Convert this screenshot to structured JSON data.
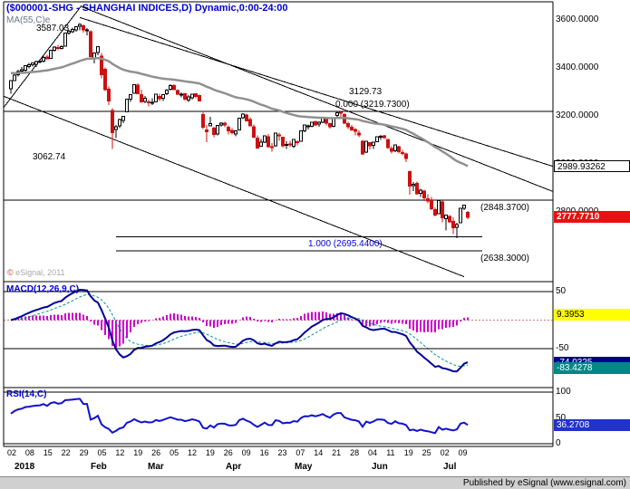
{
  "window": {
    "title": "($000001-SHG - SHANGHAI INDICES,D) Dynamic,0:00-24:00",
    "footer": "Published by eSignal (www.esignal.com)",
    "watermark": "eSignal, 2011"
  },
  "price_panel": {
    "ma_label": "MA(55,C)e",
    "axis_labels": [
      "3600.0000",
      "3400.0000",
      "3200.0000",
      "3000.0000",
      "2800.0000"
    ],
    "trendline_box": {
      "text": "2989.93262",
      "value": 2989.93262
    },
    "price_box": {
      "text": "2777.7710",
      "value": 2777.771,
      "bg": "#e81010"
    },
    "annotations": {
      "peak": "3587.03",
      "level_3129": "3129.73",
      "fib_zero": "0.000 (3219.7300)",
      "feb_low": "3062.74",
      "level_2848": "(2848.3700)",
      "fib_one": "1.000 (2695.4400)",
      "level_2638": "(2638.3000)"
    }
  },
  "macd_panel": {
    "label": "MACD(12,26,9,C)",
    "axis_labels": [
      "50",
      "-50"
    ],
    "hist_box": {
      "text": "9.3953",
      "value": 9.3953,
      "bg": "#ffff00"
    },
    "macd_box": {
      "text": "-74.0325",
      "value": -74.0325,
      "bg": "#000088"
    },
    "signal_box": {
      "text": "-83.4278",
      "value": -83.4278,
      "bg": "#008888"
    }
  },
  "rsi_panel": {
    "label": "RSI(14,C)",
    "axis_labels": [
      "100",
      "50",
      "0"
    ],
    "value_box": {
      "text": "36.2708",
      "value": 36.2708,
      "bg": "#2233cc"
    }
  },
  "x_axis": {
    "day_labels": [
      "02",
      "08",
      "15",
      "22",
      "29",
      "05",
      "12",
      "19",
      "26",
      "05",
      "12",
      "19",
      "26",
      "09",
      "16",
      "23",
      "07",
      "14",
      "21",
      "28",
      "04",
      "11",
      "19",
      "25",
      "02",
      "09"
    ],
    "month_labels": [
      "2018",
      "Feb",
      "Mar",
      "Apr",
      "May",
      "Jun",
      "Jul"
    ]
  },
  "chart_data": {
    "type": "candlestick",
    "title": "($000001-SHG - SHANGHAI INDICES,D) Dynamic,0:00-24:00",
    "symbol": "$000001-SHG",
    "interval": "D",
    "ylim": [
      2513,
      3660
    ],
    "macd_ylim": [
      -117,
      66
    ],
    "rsi_ylim": [
      -5,
      109
    ],
    "overlays": {
      "ema_period": 55,
      "ema_seed": 3380
    },
    "studies": {
      "macd": [
        12,
        26,
        9
      ],
      "rsi": 14
    },
    "levels": [
      {
        "price": 3219.73,
        "span": "full"
      },
      {
        "price": 2848.37,
        "span": "full"
      },
      {
        "price": 2695.44,
        "span": "fib"
      },
      {
        "price": 2638.3,
        "span": "fib"
      }
    ],
    "trendlines": [
      {
        "i1": -2,
        "p1": 3235,
        "i2": 19.5,
        "p2": 3660
      },
      {
        "i1": 19,
        "p1": 3610,
        "i2": 149.5,
        "p2": 2989.93
      },
      {
        "i1": 19.5,
        "p1": 3655,
        "i2": 149.5,
        "p2": 2885
      },
      {
        "i1": -2,
        "p1": 3282,
        "i2": 125,
        "p2": 2530
      }
    ],
    "candles": [
      [
        3314,
        3349,
        3292,
        3348
      ],
      [
        3347,
        3379,
        3345,
        3369
      ],
      [
        3371,
        3392,
        3365,
        3385
      ],
      [
        3386,
        3403,
        3380,
        3392
      ],
      [
        3391,
        3412,
        3384,
        3410
      ],
      [
        3406,
        3420,
        3398,
        3414
      ],
      [
        3414,
        3423,
        3405,
        3421
      ],
      [
        3415,
        3430,
        3403,
        3426
      ],
      [
        3425,
        3435,
        3418,
        3429
      ],
      [
        3428,
        3449,
        3423,
        3444
      ],
      [
        3446,
        3455,
        3436,
        3437
      ],
      [
        3440,
        3476,
        3438,
        3474
      ],
      [
        3473,
        3490,
        3467,
        3487
      ],
      [
        3485,
        3496,
        3474,
        3481
      ],
      [
        3482,
        3494,
        3477,
        3488
      ],
      [
        3490,
        3548,
        3489,
        3546
      ],
      [
        3545,
        3559,
        3538,
        3552
      ],
      [
        3551,
        3568,
        3545,
        3560
      ],
      [
        3559,
        3574,
        3551,
        3571
      ],
      [
        3573,
        3587,
        3556,
        3581
      ],
      [
        3575,
        3581,
        3548,
        3558
      ],
      [
        3555,
        3566,
        3535,
        3559
      ],
      [
        3551,
        3556,
        3438,
        3447
      ],
      [
        3442,
        3463,
        3418,
        3462
      ],
      [
        3464,
        3488,
        3452,
        3488
      ],
      [
        3450,
        3462,
        3357,
        3371
      ],
      [
        3394,
        3402,
        3304,
        3309
      ],
      [
        3312,
        3322,
        3245,
        3262
      ],
      [
        3222,
        3232,
        3063,
        3130
      ],
      [
        3144,
        3163,
        3108,
        3154
      ],
      [
        3158,
        3188,
        3149,
        3185
      ],
      [
        3181,
        3200,
        3170,
        3199
      ],
      [
        3217,
        3269,
        3216,
        3269
      ],
      [
        3269,
        3290,
        3259,
        3289
      ],
      [
        3294,
        3332,
        3292,
        3330
      ],
      [
        3329,
        3336,
        3290,
        3292
      ],
      [
        3288,
        3309,
        3255,
        3259
      ],
      [
        3260,
        3283,
        3253,
        3274
      ],
      [
        3258,
        3268,
        3239,
        3255
      ],
      [
        3254,
        3273,
        3245,
        3257
      ],
      [
        3259,
        3291,
        3258,
        3290
      ],
      [
        3282,
        3292,
        3263,
        3272
      ],
      [
        3274,
        3289,
        3263,
        3288
      ],
      [
        3292,
        3312,
        3287,
        3307
      ],
      [
        3311,
        3332,
        3306,
        3327
      ],
      [
        3327,
        3333,
        3307,
        3310
      ],
      [
        3305,
        3312,
        3287,
        3291
      ],
      [
        3288,
        3299,
        3277,
        3291
      ],
      [
        3292,
        3296,
        3264,
        3270
      ],
      [
        3267,
        3287,
        3258,
        3279
      ],
      [
        3275,
        3292,
        3268,
        3291
      ],
      [
        3292,
        3295,
        3274,
        3281
      ],
      [
        3285,
        3288,
        3260,
        3263
      ],
      [
        3206,
        3216,
        3145,
        3153
      ],
      [
        3141,
        3163,
        3091,
        3134
      ],
      [
        3158,
        3197,
        3156,
        3167
      ],
      [
        3150,
        3155,
        3112,
        3122
      ],
      [
        3124,
        3162,
        3118,
        3161
      ],
      [
        3163,
        3174,
        3154,
        3169
      ],
      [
        3169,
        3176,
        3153,
        3163
      ],
      [
        3152,
        3161,
        3123,
        3137
      ],
      [
        3139,
        3149,
        3123,
        3131
      ],
      [
        3125,
        3142,
        3115,
        3138
      ],
      [
        3142,
        3191,
        3141,
        3190
      ],
      [
        3192,
        3211,
        3186,
        3208
      ],
      [
        3204,
        3210,
        3177,
        3180
      ],
      [
        3184,
        3194,
        3157,
        3159
      ],
      [
        3155,
        3164,
        3108,
        3111
      ],
      [
        3108,
        3119,
        3063,
        3067
      ],
      [
        3074,
        3104,
        3071,
        3091
      ],
      [
        3091,
        3119,
        3087,
        3117
      ],
      [
        3114,
        3124,
        3068,
        3072
      ],
      [
        3072,
        3086,
        3051,
        3068
      ],
      [
        3076,
        3131,
        3071,
        3129
      ],
      [
        3121,
        3131,
        3097,
        3118
      ],
      [
        3111,
        3112,
        3068,
        3075
      ],
      [
        3080,
        3094,
        3062,
        3082
      ],
      [
        3083,
        3096,
        3070,
        3081
      ],
      [
        3073,
        3103,
        3066,
        3101
      ],
      [
        3093,
        3099,
        3077,
        3091
      ],
      [
        3095,
        3137,
        3093,
        3137
      ],
      [
        3137,
        3163,
        3133,
        3162
      ],
      [
        3158,
        3164,
        3144,
        3159
      ],
      [
        3157,
        3176,
        3153,
        3174
      ],
      [
        3175,
        3181,
        3158,
        3163
      ],
      [
        3166,
        3178,
        3154,
        3174
      ],
      [
        3174,
        3193,
        3170,
        3192
      ],
      [
        3185,
        3190,
        3160,
        3170
      ],
      [
        3167,
        3172,
        3148,
        3154
      ],
      [
        3156,
        3194,
        3152,
        3193
      ],
      [
        3202,
        3219,
        3196,
        3214
      ],
      [
        3216,
        3220,
        3197,
        3214
      ],
      [
        3206,
        3211,
        3166,
        3169
      ],
      [
        3168,
        3175,
        3146,
        3155
      ],
      [
        3152,
        3162,
        3137,
        3141
      ],
      [
        3143,
        3150,
        3118,
        3135
      ],
      [
        3128,
        3139,
        3112,
        3120
      ],
      [
        3095,
        3100,
        3037,
        3041
      ],
      [
        3049,
        3097,
        3045,
        3095
      ],
      [
        3088,
        3091,
        3061,
        3075
      ],
      [
        3078,
        3093,
        3062,
        3091
      ],
      [
        3093,
        3116,
        3091,
        3114
      ],
      [
        3112,
        3120,
        3100,
        3115
      ],
      [
        3117,
        3121,
        3103,
        3109
      ],
      [
        3101,
        3104,
        3062,
        3067
      ],
      [
        3064,
        3073,
        3043,
        3053
      ],
      [
        3055,
        3082,
        3050,
        3080
      ],
      [
        3072,
        3076,
        3044,
        3050
      ],
      [
        3047,
        3059,
        3036,
        3044
      ],
      [
        3042,
        3047,
        3008,
        3022
      ],
      [
        2968,
        2972,
        2871,
        2908
      ],
      [
        2909,
        2924,
        2887,
        2916
      ],
      [
        2919,
        2927,
        2872,
        2876
      ],
      [
        2878,
        2897,
        2863,
        2890
      ],
      [
        2887,
        2892,
        2846,
        2859
      ],
      [
        2854,
        2873,
        2836,
        2845
      ],
      [
        2848,
        2862,
        2808,
        2813
      ],
      [
        2810,
        2819,
        2782,
        2787
      ],
      [
        2793,
        2850,
        2791,
        2847
      ],
      [
        2842,
        2848,
        2756,
        2776
      ],
      [
        2772,
        2789,
        2722,
        2787
      ],
      [
        2782,
        2786,
        2754,
        2759
      ],
      [
        2760,
        2777,
        2708,
        2734
      ],
      [
        2735,
        2755,
        2691,
        2747
      ],
      [
        2755,
        2816,
        2753,
        2815
      ],
      [
        2816,
        2829,
        2807,
        2828
      ],
      [
        2798,
        2803,
        2770,
        2778
      ]
    ]
  }
}
